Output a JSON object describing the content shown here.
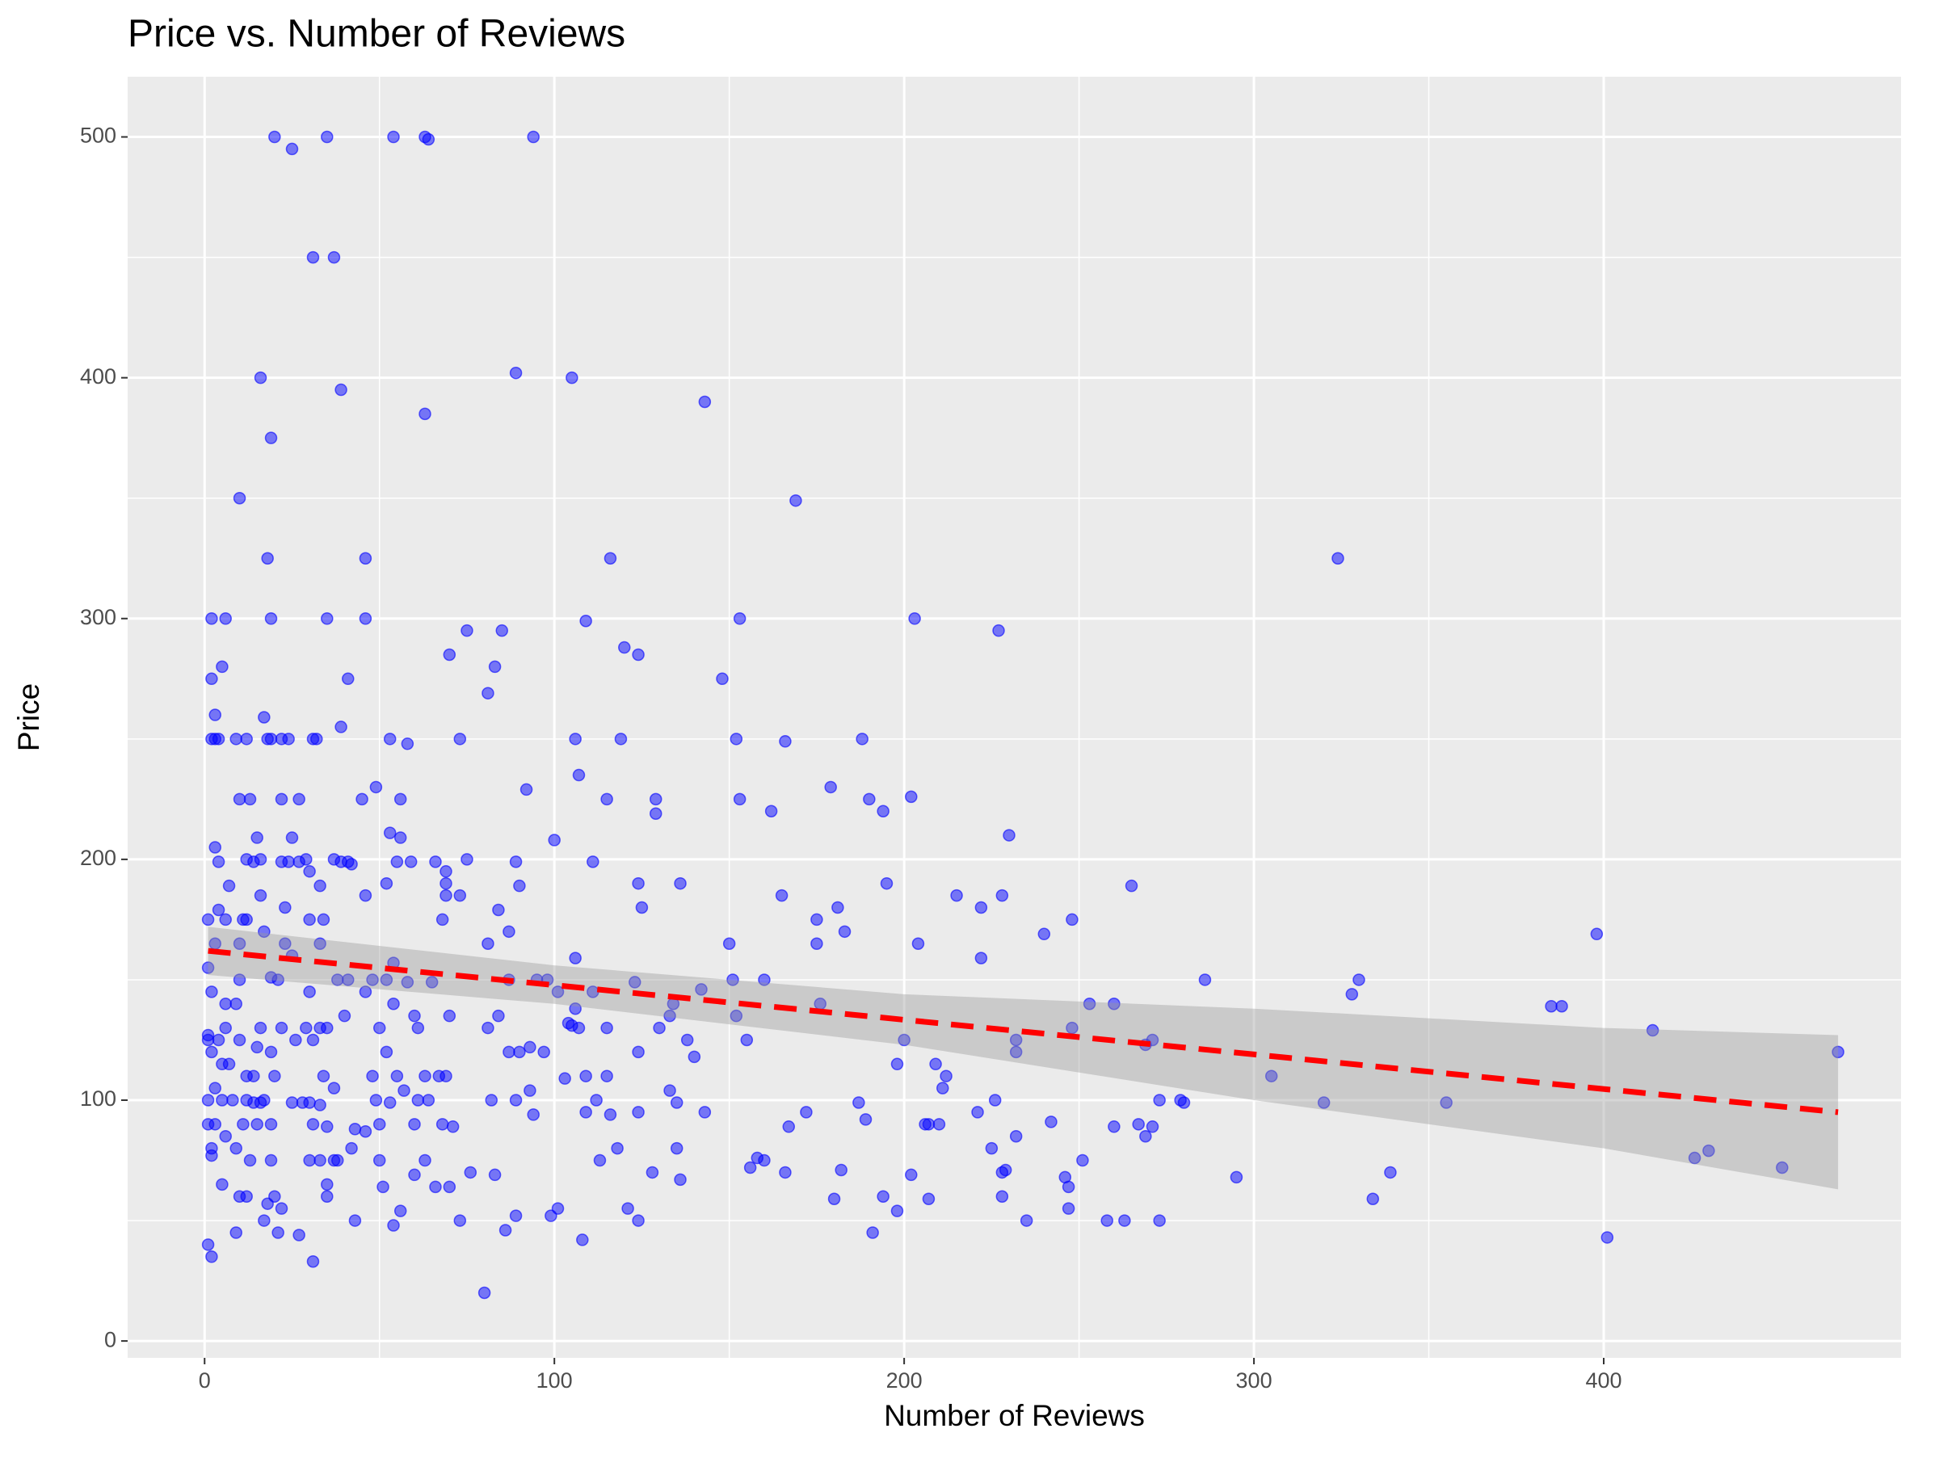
{
  "chart_data": {
    "type": "scatter",
    "title": "Price vs. Number of Reviews",
    "x_label": "Number of Reviews",
    "y_label": "Price",
    "xlim": [
      -22,
      485
    ],
    "ylim": [
      -7,
      525
    ],
    "xticks": [
      0,
      100,
      200,
      300,
      400
    ],
    "yticks": [
      0,
      100,
      200,
      300,
      400,
      500
    ],
    "grid": true,
    "color": "#0000ff",
    "x": [
      20,
      25,
      35,
      54,
      63,
      64,
      94,
      31,
      37,
      16,
      39,
      89,
      105,
      63,
      143,
      19,
      10,
      169,
      18,
      46,
      116,
      324,
      2,
      6,
      19,
      35,
      46,
      109,
      153,
      203,
      227,
      75,
      85,
      120,
      124,
      70,
      5,
      83,
      2,
      41,
      148,
      81,
      3,
      17,
      39,
      2,
      3,
      4,
      9,
      12,
      18,
      19,
      22,
      24,
      31,
      32,
      53,
      58,
      73,
      106,
      119,
      152,
      166,
      188,
      107,
      49,
      92,
      179,
      10,
      13,
      22,
      27,
      45,
      56,
      115,
      129,
      153,
      190,
      202,
      129,
      162,
      194,
      53,
      15,
      56,
      25,
      100,
      230,
      3,
      4,
      12,
      14,
      16,
      22,
      24,
      27,
      29,
      37,
      39,
      41,
      42,
      55,
      59,
      66,
      75,
      89,
      111,
      30,
      69,
      69,
      7,
      33,
      52,
      90,
      124,
      136,
      195,
      265,
      16,
      46,
      69,
      73,
      165,
      215,
      228,
      1,
      6,
      11,
      12,
      30,
      34,
      68,
      175,
      248,
      4,
      23,
      84,
      125,
      181,
      222,
      17,
      87,
      183,
      240,
      398,
      1,
      2,
      3,
      10,
      23,
      33,
      81,
      150,
      175,
      204,
      25,
      106,
      222,
      54,
      6,
      9,
      10,
      19,
      21,
      38,
      41,
      48,
      52,
      58,
      65,
      87,
      95,
      98,
      123,
      142,
      151,
      160,
      286,
      330,
      328,
      385,
      388,
      414,
      467,
      253,
      260,
      176,
      134,
      106,
      101,
      111,
      30,
      46,
      54,
      31,
      40,
      60,
      84,
      104,
      133,
      152,
      155,
      200,
      232,
      271,
      269,
      248,
      232,
      305,
      320,
      355,
      1,
      1,
      2,
      4,
      6,
      10,
      15,
      16,
      19,
      22,
      26,
      29,
      33,
      35,
      50,
      52,
      61,
      69,
      70,
      81,
      90,
      97,
      105,
      107,
      115,
      124,
      130,
      138,
      140,
      5,
      7,
      12,
      14,
      20,
      34,
      48,
      55,
      63,
      67,
      87,
      93,
      103,
      109,
      115,
      209,
      212,
      198,
      1,
      3,
      5,
      8,
      12,
      14,
      16,
      17,
      25,
      28,
      30,
      33,
      37,
      49,
      53,
      57,
      61,
      64,
      82,
      89,
      93,
      112,
      133,
      135,
      187,
      211,
      226,
      273,
      279,
      280,
      1,
      3,
      6,
      11,
      15,
      19,
      31,
      35,
      43,
      46,
      50,
      60,
      68,
      71,
      94,
      109,
      116,
      124,
      143,
      167,
      172,
      189,
      206,
      210,
      221,
      225,
      232,
      242,
      260,
      267,
      271,
      269,
      2,
      2,
      9,
      13,
      19,
      30,
      33,
      37,
      42,
      50,
      63,
      70,
      73,
      76,
      80,
      83,
      86,
      89,
      99,
      101,
      108,
      113,
      118,
      121,
      124,
      128,
      135,
      136,
      156,
      158,
      160,
      166,
      180,
      182,
      191,
      194,
      198,
      202,
      207,
      228,
      228,
      229,
      235,
      246,
      247,
      247,
      251,
      258,
      263,
      273,
      295,
      334,
      339,
      401,
      426,
      430,
      451,
      2,
      1,
      5,
      9,
      10,
      12,
      17,
      18,
      20,
      21,
      22,
      27,
      31,
      35,
      35,
      38,
      43,
      51,
      54,
      56,
      60,
      66,
      207
    ],
    "values": [
      500,
      495,
      500,
      500,
      500,
      499,
      500,
      450,
      450,
      400,
      395,
      402,
      400,
      385,
      390,
      375,
      350,
      349,
      325,
      325,
      325,
      325,
      300,
      300,
      300,
      300,
      300,
      299,
      300,
      300,
      295,
      295,
      295,
      288,
      285,
      285,
      280,
      280,
      275,
      275,
      275,
      269,
      260,
      259,
      255,
      250,
      250,
      250,
      250,
      250,
      250,
      250,
      250,
      250,
      250,
      250,
      250,
      248,
      250,
      250,
      250,
      250,
      249,
      250,
      235,
      230,
      229,
      230,
      225,
      225,
      225,
      225,
      225,
      225,
      225,
      225,
      225,
      225,
      226,
      219,
      220,
      220,
      211,
      209,
      209,
      209,
      208,
      210,
      205,
      199,
      200,
      199,
      200,
      199,
      199,
      199,
      200,
      200,
      199,
      199,
      198,
      199,
      199,
      199,
      200,
      199,
      199,
      195,
      195,
      190,
      189,
      189,
      190,
      189,
      190,
      190,
      190,
      189,
      185,
      185,
      185,
      185,
      185,
      185,
      185,
      175,
      175,
      175,
      175,
      175,
      175,
      175,
      175,
      175,
      179,
      180,
      179,
      180,
      180,
      180,
      170,
      170,
      170,
      169,
      169,
      155,
      145,
      165,
      165,
      165,
      165,
      165,
      165,
      165,
      165,
      160,
      159,
      159,
      157,
      140,
      140,
      150,
      151,
      150,
      150,
      150,
      150,
      150,
      149,
      149,
      150,
      150,
      150,
      149,
      146,
      150,
      150,
      150,
      150,
      144,
      139,
      139,
      129,
      120,
      140,
      140,
      140,
      140,
      138,
      145,
      145,
      145,
      145,
      140,
      125,
      135,
      135,
      135,
      132,
      135,
      135,
      125,
      125,
      125,
      125,
      123,
      130,
      120,
      110,
      99,
      99,
      127,
      125,
      120,
      125,
      130,
      125,
      122,
      130,
      120,
      130,
      125,
      130,
      130,
      130,
      130,
      120,
      130,
      110,
      135,
      130,
      120,
      120,
      131,
      130,
      130,
      120,
      130,
      125,
      118,
      115,
      115,
      110,
      110,
      110,
      110,
      110,
      110,
      110,
      110,
      120,
      122,
      109,
      110,
      110,
      115,
      110,
      115,
      100,
      105,
      100,
      100,
      100,
      99,
      99,
      100,
      99,
      99,
      99,
      98,
      105,
      100,
      99,
      104,
      100,
      100,
      100,
      100,
      104,
      100,
      104,
      99,
      99,
      105,
      100,
      100,
      100,
      99,
      90,
      90,
      85,
      90,
      90,
      90,
      90,
      89,
      88,
      87,
      90,
      90,
      90,
      89,
      94,
      95,
      94,
      95,
      95,
      89,
      95,
      92,
      90,
      90,
      95,
      80,
      85,
      91,
      89,
      90,
      89,
      85,
      80,
      77,
      80,
      75,
      75,
      75,
      75,
      75,
      80,
      75,
      75,
      64,
      50,
      70,
      20,
      69,
      46,
      52,
      52,
      55,
      42,
      75,
      80,
      55,
      50,
      70,
      80,
      67,
      72,
      76,
      75,
      70,
      59,
      71,
      45,
      60,
      54,
      69,
      59,
      60,
      70,
      71,
      50,
      68,
      64,
      55,
      75,
      50,
      50,
      50,
      68,
      59,
      70,
      43,
      76,
      79,
      72,
      35,
      40,
      65,
      45,
      60,
      60,
      50,
      57,
      60,
      45,
      55,
      44,
      33,
      60,
      65,
      75,
      50,
      64,
      48,
      54,
      69,
      64,
      90
    ],
    "trend": {
      "x": [
        1,
        467
      ],
      "values": [
        162,
        95
      ],
      "color": "#ff0000"
    },
    "band": {
      "x": [
        1,
        100,
        200,
        300,
        400,
        467
      ],
      "lower": [
        152,
        140,
        123,
        100,
        80,
        63
      ],
      "upper": [
        172,
        156,
        144,
        138,
        130,
        127
      ],
      "color": "#999999"
    }
  }
}
